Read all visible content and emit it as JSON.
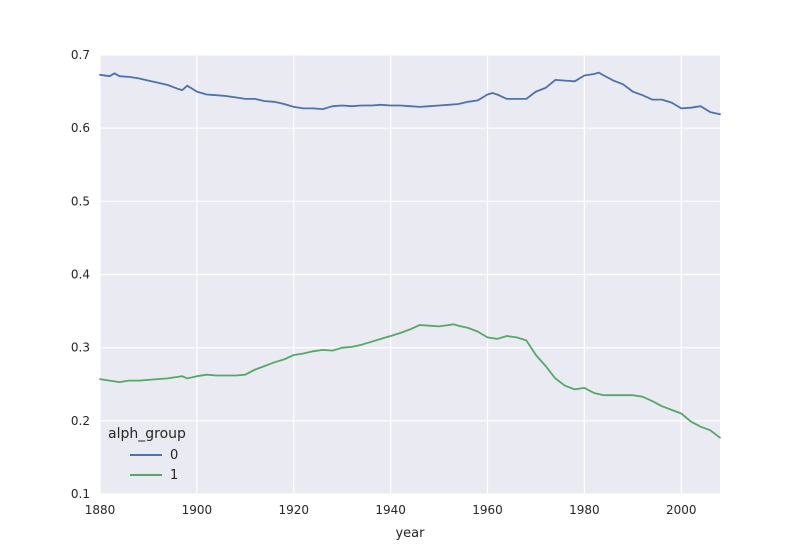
{
  "chart_data": {
    "type": "line",
    "xlabel": "year",
    "ylabel": "",
    "xlim": [
      1880,
      2008
    ],
    "ylim": [
      0.1,
      0.7
    ],
    "xticks": [
      1880,
      1900,
      1920,
      1940,
      1960,
      1980,
      2000
    ],
    "xtick_labels": [
      "1880",
      "1900",
      "1920",
      "1940",
      "1960",
      "1980",
      "2000"
    ],
    "yticks": [
      0.1,
      0.2,
      0.3,
      0.4,
      0.5,
      0.6,
      0.7
    ],
    "ytick_labels": [
      "0.1",
      "0.2",
      "0.3",
      "0.4",
      "0.5",
      "0.6",
      "0.7"
    ],
    "grid": true,
    "legend": {
      "title": "alph_group",
      "placement": "lower-left"
    },
    "series": [
      {
        "name": "0",
        "color": "#4c72b0",
        "x": [
          1880,
          1882,
          1883,
          1884,
          1886,
          1888,
          1890,
          1892,
          1894,
          1896,
          1897,
          1898,
          1900,
          1902,
          1904,
          1906,
          1908,
          1910,
          1912,
          1914,
          1916,
          1918,
          1920,
          1922,
          1924,
          1926,
          1928,
          1930,
          1932,
          1934,
          1936,
          1938,
          1940,
          1942,
          1944,
          1946,
          1948,
          1950,
          1952,
          1954,
          1956,
          1958,
          1960,
          1961,
          1962,
          1964,
          1966,
          1968,
          1970,
          1972,
          1974,
          1976,
          1978,
          1980,
          1982,
          1983,
          1984,
          1986,
          1988,
          1990,
          1992,
          1994,
          1996,
          1998,
          2000,
          2002,
          2004,
          2006,
          2008
        ],
        "values": [
          0.673,
          0.671,
          0.675,
          0.671,
          0.67,
          0.668,
          0.665,
          0.662,
          0.659,
          0.654,
          0.652,
          0.658,
          0.65,
          0.646,
          0.645,
          0.644,
          0.642,
          0.64,
          0.64,
          0.637,
          0.636,
          0.633,
          0.629,
          0.627,
          0.627,
          0.626,
          0.63,
          0.631,
          0.63,
          0.631,
          0.631,
          0.632,
          0.631,
          0.631,
          0.63,
          0.629,
          0.63,
          0.631,
          0.632,
          0.633,
          0.636,
          0.638,
          0.646,
          0.648,
          0.646,
          0.64,
          0.64,
          0.64,
          0.65,
          0.655,
          0.666,
          0.665,
          0.664,
          0.672,
          0.674,
          0.676,
          0.672,
          0.665,
          0.66,
          0.65,
          0.645,
          0.639,
          0.639,
          0.635,
          0.627,
          0.628,
          0.63,
          0.622,
          0.619
        ]
      },
      {
        "name": "1",
        "color": "#55a868",
        "x": [
          1880,
          1882,
          1884,
          1886,
          1888,
          1890,
          1892,
          1894,
          1896,
          1897,
          1898,
          1900,
          1902,
          1904,
          1906,
          1908,
          1910,
          1912,
          1914,
          1916,
          1918,
          1920,
          1922,
          1924,
          1926,
          1928,
          1930,
          1932,
          1934,
          1936,
          1938,
          1940,
          1942,
          1944,
          1946,
          1948,
          1950,
          1952,
          1953,
          1954,
          1956,
          1958,
          1960,
          1962,
          1964,
          1966,
          1968,
          1970,
          1972,
          1974,
          1976,
          1978,
          1980,
          1982,
          1984,
          1986,
          1988,
          1990,
          1992,
          1994,
          1996,
          1998,
          2000,
          2002,
          2004,
          2006,
          2008
        ],
        "values": [
          0.257,
          0.255,
          0.253,
          0.255,
          0.255,
          0.256,
          0.257,
          0.258,
          0.26,
          0.261,
          0.258,
          0.261,
          0.263,
          0.262,
          0.262,
          0.262,
          0.263,
          0.27,
          0.275,
          0.28,
          0.284,
          0.29,
          0.292,
          0.295,
          0.297,
          0.296,
          0.3,
          0.301,
          0.304,
          0.308,
          0.312,
          0.316,
          0.32,
          0.325,
          0.331,
          0.33,
          0.329,
          0.331,
          0.332,
          0.33,
          0.327,
          0.322,
          0.314,
          0.312,
          0.316,
          0.314,
          0.31,
          0.29,
          0.275,
          0.258,
          0.248,
          0.243,
          0.245,
          0.238,
          0.235,
          0.235,
          0.235,
          0.235,
          0.233,
          0.227,
          0.22,
          0.215,
          0.21,
          0.199,
          0.192,
          0.187,
          0.177
        ]
      }
    ]
  }
}
